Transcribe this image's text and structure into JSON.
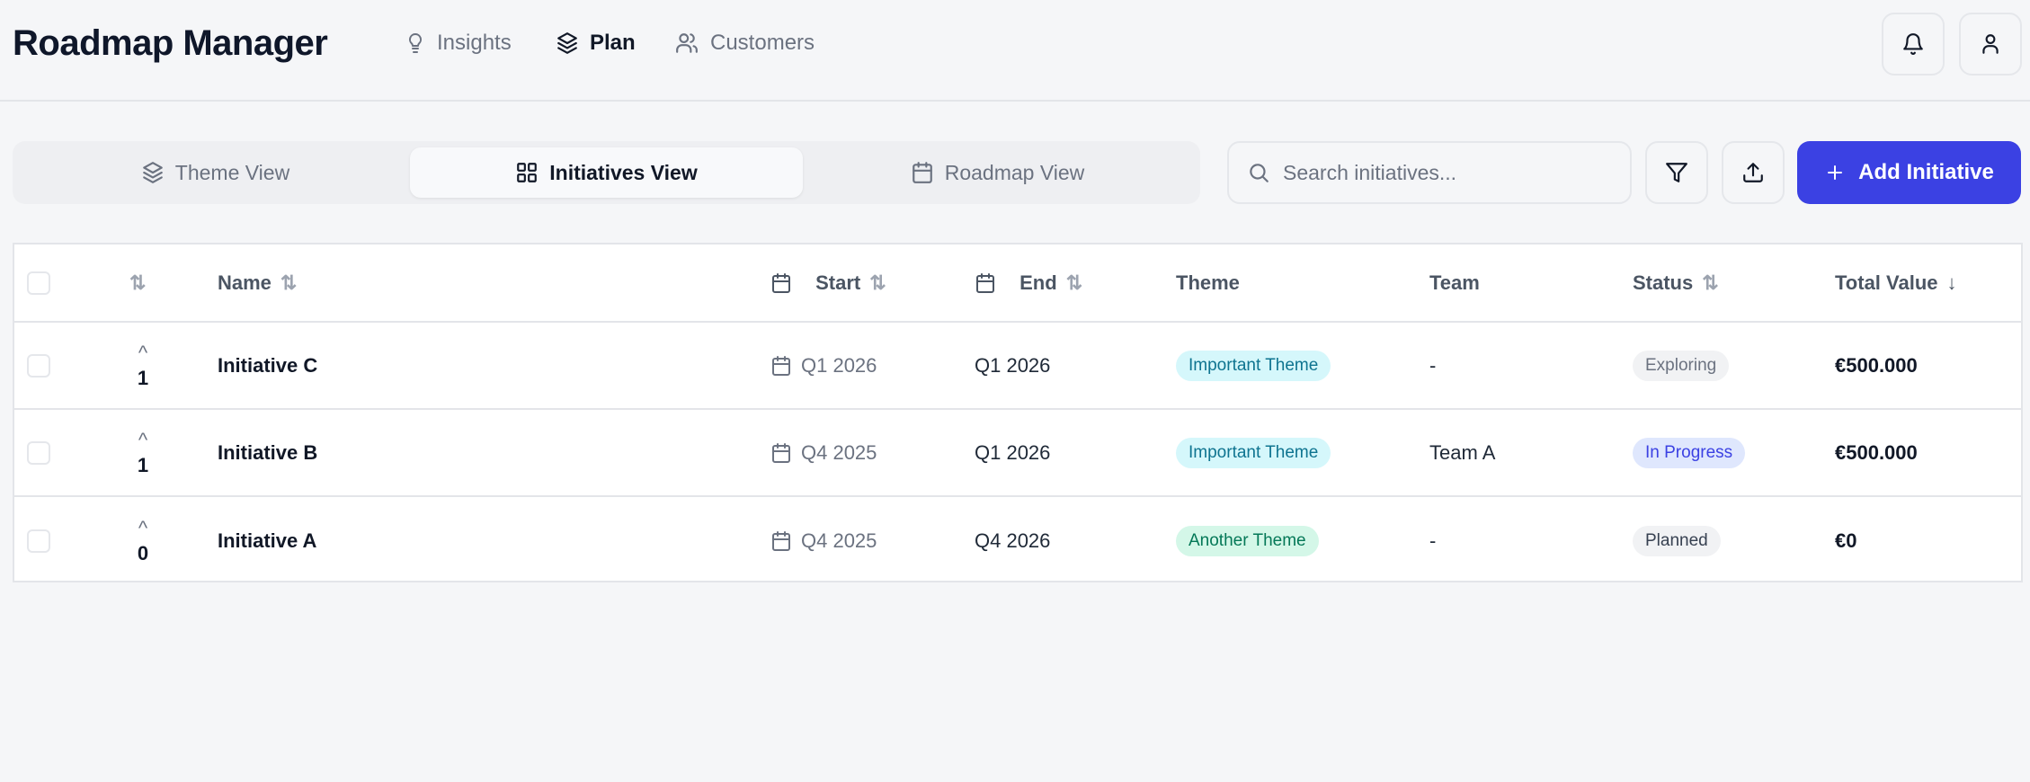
{
  "app": {
    "title": "Roadmap Manager"
  },
  "nav": [
    {
      "label": "Insights",
      "icon": "lightbulb-icon"
    },
    {
      "label": "Plan",
      "icon": "layers-icon",
      "active": true
    },
    {
      "label": "Customers",
      "icon": "users-icon"
    }
  ],
  "views": [
    {
      "label": "Theme View",
      "icon": "layers-icon"
    },
    {
      "label": "Initiatives View",
      "icon": "grid-icon",
      "active": true
    },
    {
      "label": "Roadmap View",
      "icon": "calendar-icon"
    }
  ],
  "search": {
    "placeholder": "Search initiatives...",
    "value": ""
  },
  "toolbar": {
    "add_label": "Add Initiative"
  },
  "colors": {
    "accent": "#3b41e3",
    "theme_important_bg": "#d5f7fb",
    "theme_another_bg": "#d4f7e8",
    "status_progress_bg": "#dfe7fd",
    "status_neutral_bg": "#f1f2f4"
  },
  "table": {
    "headers": {
      "name": "Name",
      "start": "Start",
      "end": "End",
      "theme": "Theme",
      "team": "Team",
      "status": "Status",
      "total": "Total Value"
    },
    "rows": [
      {
        "votes": "1",
        "name": "Initiative C",
        "start": "Q1 2026",
        "end": "Q1 2026",
        "theme": "Important Theme",
        "team": "-",
        "status": "Exploring",
        "total": "€500.000"
      },
      {
        "votes": "1",
        "name": "Initiative B",
        "start": "Q4 2025",
        "end": "Q1 2026",
        "theme": "Important Theme",
        "team": "Team A",
        "status": "In Progress",
        "total": "€500.000"
      },
      {
        "votes": "0",
        "name": "Initiative A",
        "start": "Q4 2025",
        "end": "Q4 2026",
        "theme": "Another Theme",
        "team": "-",
        "status": "Planned",
        "total": "€0"
      }
    ]
  }
}
